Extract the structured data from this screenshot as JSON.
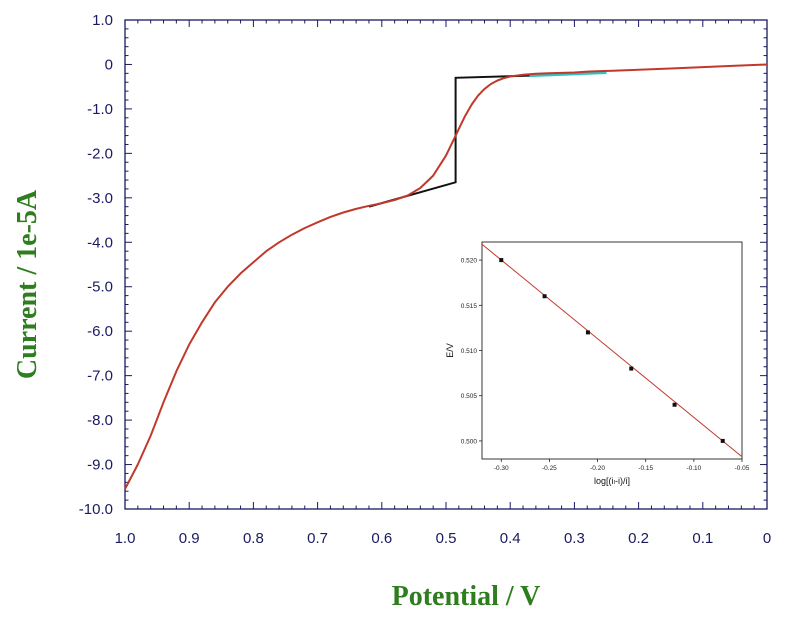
{
  "chart_data": [
    {
      "type": "line",
      "title": "",
      "xlabel": "Potential / V",
      "ylabel": "Current / 1e-5A",
      "xlim": [
        1.0,
        0
      ],
      "ylim": [
        -10.0,
        1.0
      ],
      "x_ticks": [
        "1.0",
        "0.9",
        "0.8",
        "0.7",
        "0.6",
        "0.5",
        "0.4",
        "0.3",
        "0.2",
        "0.1",
        "0"
      ],
      "y_ticks": [
        "1.0",
        "0",
        "-1.0",
        "-2.0",
        "-3.0",
        "-4.0",
        "-5.0",
        "-6.0",
        "-7.0",
        "-8.0",
        "-9.0",
        "-10.0"
      ],
      "grid": false,
      "colors": {
        "curve": "#c0392b",
        "construction": "#111111",
        "highlight": "#2ec4c4",
        "axis": "#1a1a60"
      },
      "series": [
        {
          "role": "voltammogram",
          "x": [
            1.0,
            0.98,
            0.96,
            0.94,
            0.92,
            0.9,
            0.88,
            0.86,
            0.84,
            0.82,
            0.8,
            0.78,
            0.76,
            0.74,
            0.72,
            0.7,
            0.68,
            0.66,
            0.64,
            0.62,
            0.6,
            0.58,
            0.56,
            0.54,
            0.52,
            0.5,
            0.49,
            0.48,
            0.47,
            0.46,
            0.45,
            0.44,
            0.43,
            0.42,
            0.41,
            0.4,
            0.38,
            0.36,
            0.34,
            0.32,
            0.3,
            0.28,
            0.26,
            0.24,
            0.22,
            0.2,
            0.15,
            0.1,
            0.05,
            0.0
          ],
          "y": [
            -9.55,
            -9.0,
            -8.35,
            -7.6,
            -6.9,
            -6.3,
            -5.8,
            -5.35,
            -5.0,
            -4.7,
            -4.45,
            -4.2,
            -4.0,
            -3.83,
            -3.68,
            -3.55,
            -3.43,
            -3.33,
            -3.25,
            -3.18,
            -3.12,
            -3.05,
            -2.95,
            -2.78,
            -2.5,
            -2.05,
            -1.75,
            -1.45,
            -1.15,
            -0.9,
            -0.7,
            -0.55,
            -0.44,
            -0.36,
            -0.31,
            -0.27,
            -0.23,
            -0.21,
            -0.2,
            -0.19,
            -0.18,
            -0.16,
            -0.15,
            -0.14,
            -0.13,
            -0.12,
            -0.09,
            -0.06,
            -0.03,
            0.0
          ]
        },
        {
          "role": "baseline-construction",
          "x": [
            0.62,
            0.485,
            0.485,
            0.37
          ],
          "y": [
            -3.2,
            -2.65,
            -0.3,
            -0.25
          ]
        },
        {
          "role": "extrapolated-baseline",
          "x": [
            0.37,
            0.25
          ],
          "y": [
            -0.25,
            -0.18
          ]
        }
      ]
    },
    {
      "type": "scatter",
      "title": "",
      "xlabel": "log[(iₗ-i)/i]",
      "ylabel": "E/V",
      "xlim": [
        -0.32,
        -0.05
      ],
      "ylim": [
        0.498,
        0.522
      ],
      "x_ticks": [
        "-0.30",
        "-0.25",
        "-0.20",
        "-0.15",
        "-0.10",
        "-0.05"
      ],
      "y_ticks": [
        "0.500",
        "0.505",
        "0.510",
        "0.515",
        "0.520"
      ],
      "grid": false,
      "points": {
        "x": [
          -0.3,
          -0.255,
          -0.21,
          -0.165,
          -0.12,
          -0.07
        ],
        "y": [
          0.52,
          0.516,
          0.512,
          0.508,
          0.504,
          0.5
        ]
      },
      "fit": {
        "x": [
          -0.32,
          -0.05
        ],
        "y": [
          0.52175,
          0.49825
        ]
      },
      "colors": {
        "fit": "#c0392b",
        "points": "#111111"
      }
    }
  ]
}
